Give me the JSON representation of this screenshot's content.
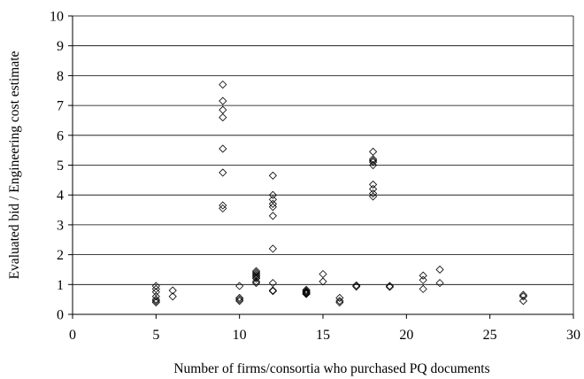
{
  "chart_data": {
    "type": "scatter",
    "title": "",
    "xlabel": "Number of firms/consortia who purchased PQ documents",
    "ylabel": "Evaluated bid / Engineering cost estimate",
    "xlim": [
      0,
      30
    ],
    "ylim": [
      0,
      10
    ],
    "x_ticks": [
      0,
      5,
      10,
      15,
      20,
      25,
      30
    ],
    "y_ticks": [
      0,
      1,
      2,
      3,
      4,
      5,
      6,
      7,
      8,
      9,
      10
    ],
    "grid": "horizontal",
    "marker": "open-diamond",
    "series": [
      {
        "points": [
          [
            5,
            0.95
          ],
          [
            5,
            0.85
          ],
          [
            5,
            0.75
          ],
          [
            5,
            0.6
          ],
          [
            5,
            0.5
          ],
          [
            5,
            0.45
          ],
          [
            5,
            0.4
          ],
          [
            6,
            0.8
          ],
          [
            6,
            0.6
          ],
          [
            9,
            7.7
          ],
          [
            9,
            7.15
          ],
          [
            9,
            6.85
          ],
          [
            9,
            6.6
          ],
          [
            9,
            5.55
          ],
          [
            9,
            4.75
          ],
          [
            9,
            3.65
          ],
          [
            9,
            3.55
          ],
          [
            10,
            0.95
          ],
          [
            10,
            0.55
          ],
          [
            10,
            0.5
          ],
          [
            10,
            0.45
          ],
          [
            11,
            1.45
          ],
          [
            11,
            1.4
          ],
          [
            11,
            1.35
          ],
          [
            11,
            1.3
          ],
          [
            11,
            1.25
          ],
          [
            11,
            1.2
          ],
          [
            11,
            1.1
          ],
          [
            11,
            1.05
          ],
          [
            12,
            4.65
          ],
          [
            12,
            4.0
          ],
          [
            12,
            3.85
          ],
          [
            12,
            3.7
          ],
          [
            12,
            3.6
          ],
          [
            12,
            3.3
          ],
          [
            12,
            2.2
          ],
          [
            12,
            1.05
          ],
          [
            12,
            0.8
          ],
          [
            12,
            0.78
          ],
          [
            14,
            0.82
          ],
          [
            14,
            0.78
          ],
          [
            14,
            0.75
          ],
          [
            14,
            0.72
          ],
          [
            14,
            0.7
          ],
          [
            14,
            0.68
          ],
          [
            15,
            1.35
          ],
          [
            15,
            1.1
          ],
          [
            16,
            0.55
          ],
          [
            16,
            0.45
          ],
          [
            16,
            0.4
          ],
          [
            17,
            0.97
          ],
          [
            17,
            0.93
          ],
          [
            18,
            5.45
          ],
          [
            18,
            5.2
          ],
          [
            18,
            5.15
          ],
          [
            18,
            5.1
          ],
          [
            18,
            5.0
          ],
          [
            18,
            4.35
          ],
          [
            18,
            4.2
          ],
          [
            18,
            4.05
          ],
          [
            18,
            3.95
          ],
          [
            19,
            0.95
          ],
          [
            19,
            0.92
          ],
          [
            21,
            1.3
          ],
          [
            21,
            1.15
          ],
          [
            21,
            0.85
          ],
          [
            22,
            1.5
          ],
          [
            22,
            1.05
          ],
          [
            27,
            0.65
          ],
          [
            27,
            0.6
          ],
          [
            27,
            0.45
          ]
        ]
      }
    ]
  }
}
